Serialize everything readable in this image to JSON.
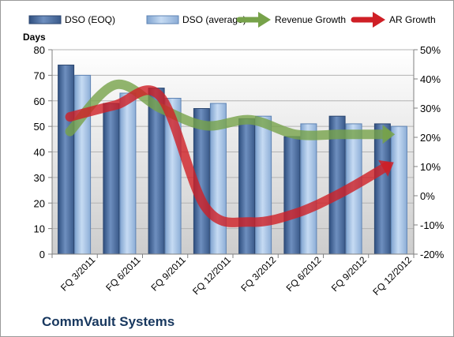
{
  "chart_data": {
    "type": "bar",
    "title": "",
    "caption": "CommVault Systems",
    "ylabel": "Days",
    "ylim": [
      0,
      80
    ],
    "yticks": [
      0,
      10,
      20,
      30,
      40,
      50,
      60,
      70,
      80
    ],
    "y2lim": [
      -20,
      50
    ],
    "y2ticks": [
      "-20%",
      "-10%",
      "0%",
      "10%",
      "20%",
      "30%",
      "40%",
      "50%"
    ],
    "y2values": [
      -20,
      -10,
      0,
      10,
      20,
      30,
      40,
      50
    ],
    "categories": [
      "FQ 3/2011",
      "FQ 6/2011",
      "FQ 9/2011",
      "FQ 12/2011",
      "FQ 3/2012",
      "FQ 6/2012",
      "FQ 9/2012",
      "FQ 12/2012"
    ],
    "grid": "horizontal",
    "legend_position": "top",
    "series": [
      {
        "name": "DSO (EOQ)",
        "kind": "bar",
        "axis": "left",
        "color": "#4f6f9f",
        "values": [
          74,
          59,
          65,
          57,
          53,
          46,
          54,
          51
        ]
      },
      {
        "name": "DSO (average)",
        "kind": "bar",
        "axis": "left",
        "color": "#9dbbe0",
        "values": [
          70,
          63,
          61,
          59,
          54,
          51,
          51,
          50
        ]
      },
      {
        "name": "Revenue Growth",
        "kind": "arrow-line",
        "axis": "right",
        "color": "#77a24a",
        "values": [
          22,
          38,
          30,
          24,
          26,
          21,
          21,
          21
        ]
      },
      {
        "name": "AR Growth",
        "kind": "arrow-line",
        "axis": "right",
        "color": "#cf1f26",
        "values": [
          27,
          31,
          34,
          -4,
          -9,
          -6,
          1,
          10
        ]
      }
    ]
  }
}
